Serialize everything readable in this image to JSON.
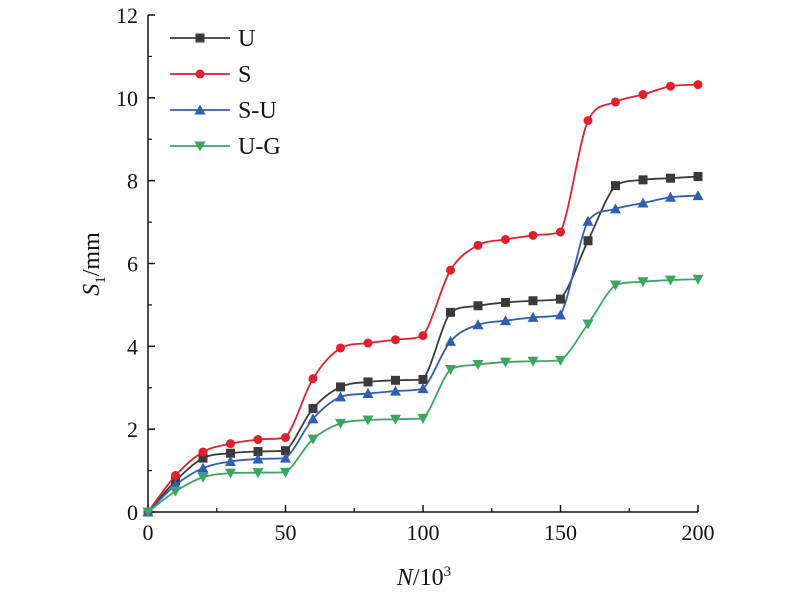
{
  "chart_data": {
    "type": "line",
    "xlabel_main": "N",
    "xlabel_unit": "/10",
    "xlabel_exp": "3",
    "ylabel_main": "S",
    "ylabel_sub": "1",
    "ylabel_unit": "/mm",
    "xlim": [
      0,
      200
    ],
    "ylim": [
      0,
      12
    ],
    "xticks": [
      0,
      50,
      100,
      150,
      200
    ],
    "yticks": [
      0,
      2,
      4,
      6,
      8,
      10,
      12
    ],
    "grid": false,
    "legend_position": "top-left",
    "x": [
      0,
      10,
      20,
      30,
      40,
      50,
      60,
      70,
      80,
      90,
      100,
      110,
      120,
      130,
      140,
      150,
      160,
      170,
      180,
      190,
      200
    ],
    "series": [
      {
        "name": "U",
        "color": "#3a3a3a",
        "marker": "square",
        "values": [
          0,
          0.75,
          1.3,
          1.42,
          1.46,
          1.48,
          2.5,
          3.02,
          3.14,
          3.18,
          3.2,
          4.82,
          4.98,
          5.06,
          5.1,
          5.14,
          6.55,
          7.88,
          8.02,
          8.06,
          8.1
        ]
      },
      {
        "name": "S",
        "color": "#e0202a",
        "marker": "circle",
        "values": [
          0,
          0.88,
          1.45,
          1.65,
          1.75,
          1.8,
          3.22,
          3.96,
          4.08,
          4.16,
          4.26,
          5.84,
          6.44,
          6.58,
          6.68,
          6.76,
          9.45,
          9.9,
          10.08,
          10.28,
          10.32
        ]
      },
      {
        "name": "S-U",
        "color": "#2d5fb4",
        "marker": "triangle-up",
        "values": [
          0,
          0.65,
          1.06,
          1.22,
          1.28,
          1.3,
          2.25,
          2.78,
          2.86,
          2.92,
          2.98,
          4.12,
          4.52,
          4.62,
          4.7,
          4.76,
          7.02,
          7.32,
          7.46,
          7.6,
          7.64
        ]
      },
      {
        "name": "U-G",
        "color": "#3aa661",
        "marker": "triangle-down",
        "values": [
          0,
          0.5,
          0.84,
          0.94,
          0.95,
          0.96,
          1.76,
          2.14,
          2.22,
          2.24,
          2.26,
          3.44,
          3.56,
          3.62,
          3.64,
          3.66,
          4.54,
          5.48,
          5.56,
          5.6,
          5.62
        ]
      }
    ]
  }
}
